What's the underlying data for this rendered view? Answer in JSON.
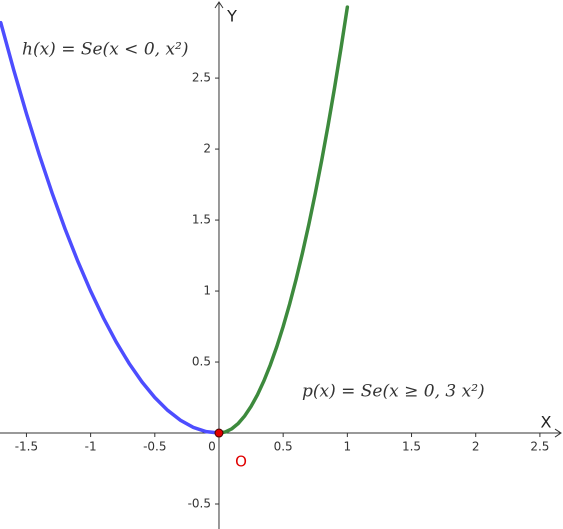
{
  "chart_data": {
    "type": "line",
    "x_label": "X",
    "y_label": "Y",
    "xlim": [
      -1.706,
      2.68
    ],
    "ylim": [
      -0.676,
      3.05
    ],
    "xticks": [
      -1.5,
      -1,
      -0.5,
      0,
      0.5,
      1,
      1.5,
      2,
      2.5
    ],
    "yticks": [
      -0.5,
      0.5,
      1,
      1.5,
      2,
      2.5
    ],
    "grid": false,
    "series": [
      {
        "name": "h(x)  =  Se(x < 0, x²)",
        "color": "#4d4dff",
        "x": [
          -1.7,
          -1.6,
          -1.5,
          -1.4,
          -1.3,
          -1.2,
          -1.1,
          -1,
          -0.9,
          -0.8,
          -0.7,
          -0.6,
          -0.5,
          -0.4,
          -0.3,
          -0.2,
          -0.1,
          0
        ],
        "values": [
          2.89,
          2.56,
          2.25,
          1.96,
          1.69,
          1.44,
          1.21,
          1,
          0.81,
          0.64,
          0.49,
          0.36,
          0.25,
          0.16,
          0.09,
          0.04,
          0.01,
          0
        ]
      },
      {
        "name": "p(x)  =  Se(x ≥ 0, 3 x²)",
        "color": "#3d8a3d",
        "x": [
          0,
          0.05,
          0.1,
          0.15,
          0.2,
          0.25,
          0.3,
          0.35,
          0.4,
          0.45,
          0.5,
          0.55,
          0.6,
          0.65,
          0.7,
          0.75,
          0.8,
          0.85,
          0.9,
          0.95,
          1.0
        ],
        "values": [
          0,
          0.0075,
          0.03,
          0.0675,
          0.12,
          0.1875,
          0.27,
          0.3675,
          0.48,
          0.6075,
          0.75,
          0.9075,
          1.08,
          1.2675,
          1.47,
          1.6875,
          1.92,
          2.1675,
          2.43,
          2.7075,
          3.0
        ]
      }
    ],
    "points": [
      {
        "label": "O",
        "x": 0,
        "y": 0,
        "color": "#e00000"
      }
    ]
  }
}
